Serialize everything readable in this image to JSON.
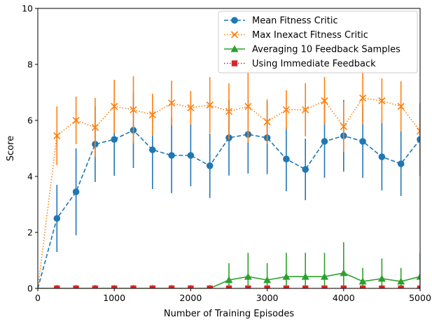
{
  "chart_data": {
    "type": "line",
    "title": "",
    "xlabel": "Number of Training Episodes",
    "ylabel": "Score",
    "xlim": [
      0,
      5000
    ],
    "ylim": [
      0,
      10
    ],
    "xticks": [
      0,
      1000,
      2000,
      3000,
      4000,
      5000
    ],
    "yticks": [
      0,
      2,
      4,
      6,
      8,
      10
    ],
    "grid": false,
    "legend_position": "top-right",
    "x": [
      0,
      250,
      500,
      750,
      1000,
      1250,
      1500,
      1750,
      2000,
      2250,
      2500,
      2750,
      3000,
      3250,
      3500,
      3750,
      4000,
      4250,
      4500,
      4750,
      5000
    ],
    "series": [
      {
        "name": "Mean Fitness Critic",
        "color": "#1f77b4",
        "line_style": "dashed",
        "marker": "circle",
        "values": [
          0,
          2.5,
          3.45,
          5.15,
          5.32,
          5.65,
          4.95,
          4.75,
          4.75,
          4.38,
          5.38,
          5.5,
          5.38,
          4.62,
          4.25,
          5.25,
          5.45,
          5.25,
          4.7,
          4.45,
          5.32
        ],
        "error": [
          0,
          1.2,
          1.55,
          1.35,
          1.3,
          1.35,
          1.4,
          1.35,
          1.1,
          1.15,
          1.35,
          1.4,
          1.3,
          1.15,
          1.1,
          1.3,
          1.28,
          1.3,
          1.2,
          1.15,
          1.3
        ]
      },
      {
        "name": "Max Inexact Fitness Critic",
        "color": "#ff7f0e",
        "line_style": "dotted",
        "marker": "x",
        "values": [
          0,
          5.45,
          6.0,
          5.75,
          6.5,
          6.38,
          6.2,
          6.62,
          6.45,
          6.55,
          6.32,
          6.5,
          5.95,
          6.38,
          6.38,
          6.7,
          5.78,
          6.8,
          6.7,
          6.5,
          5.62
        ],
        "error": [
          0,
          1.05,
          0.85,
          1.05,
          0.95,
          1.2,
          0.75,
          0.8,
          0.6,
          1.0,
          1.0,
          1.3,
          0.8,
          0.7,
          0.95,
          0.85,
          0.9,
          0.95,
          0.8,
          0.9,
          0.9
        ]
      },
      {
        "name": "Averaging 10 Feedback Samples",
        "color": "#2ca02c",
        "line_style": "solid",
        "marker": "triangle",
        "values": [
          0,
          0,
          0,
          0,
          0,
          0,
          0,
          0,
          0,
          0,
          0.3,
          0.42,
          0.3,
          0.42,
          0.42,
          0.42,
          0.55,
          0.25,
          0.35,
          0.25,
          0.42
        ],
        "error": [
          0,
          0,
          0,
          0,
          0,
          0,
          0,
          0,
          0,
          0,
          0.6,
          0.85,
          0.6,
          0.85,
          0.85,
          0.85,
          1.1,
          0.48,
          0.72,
          0.48,
          0.85
        ]
      },
      {
        "name": "Using Immediate Feedback",
        "color": "#d62728",
        "line_style": "dotted",
        "marker": "square",
        "values": [
          0,
          0,
          0,
          0,
          0,
          0,
          0,
          0,
          0,
          0,
          0,
          0,
          0,
          0,
          0,
          0,
          0,
          0,
          0,
          0,
          0
        ],
        "error": [
          0,
          0,
          0,
          0,
          0,
          0,
          0,
          0,
          0,
          0,
          0,
          0,
          0,
          0,
          0,
          0,
          0,
          0,
          0,
          0,
          0
        ]
      }
    ]
  }
}
